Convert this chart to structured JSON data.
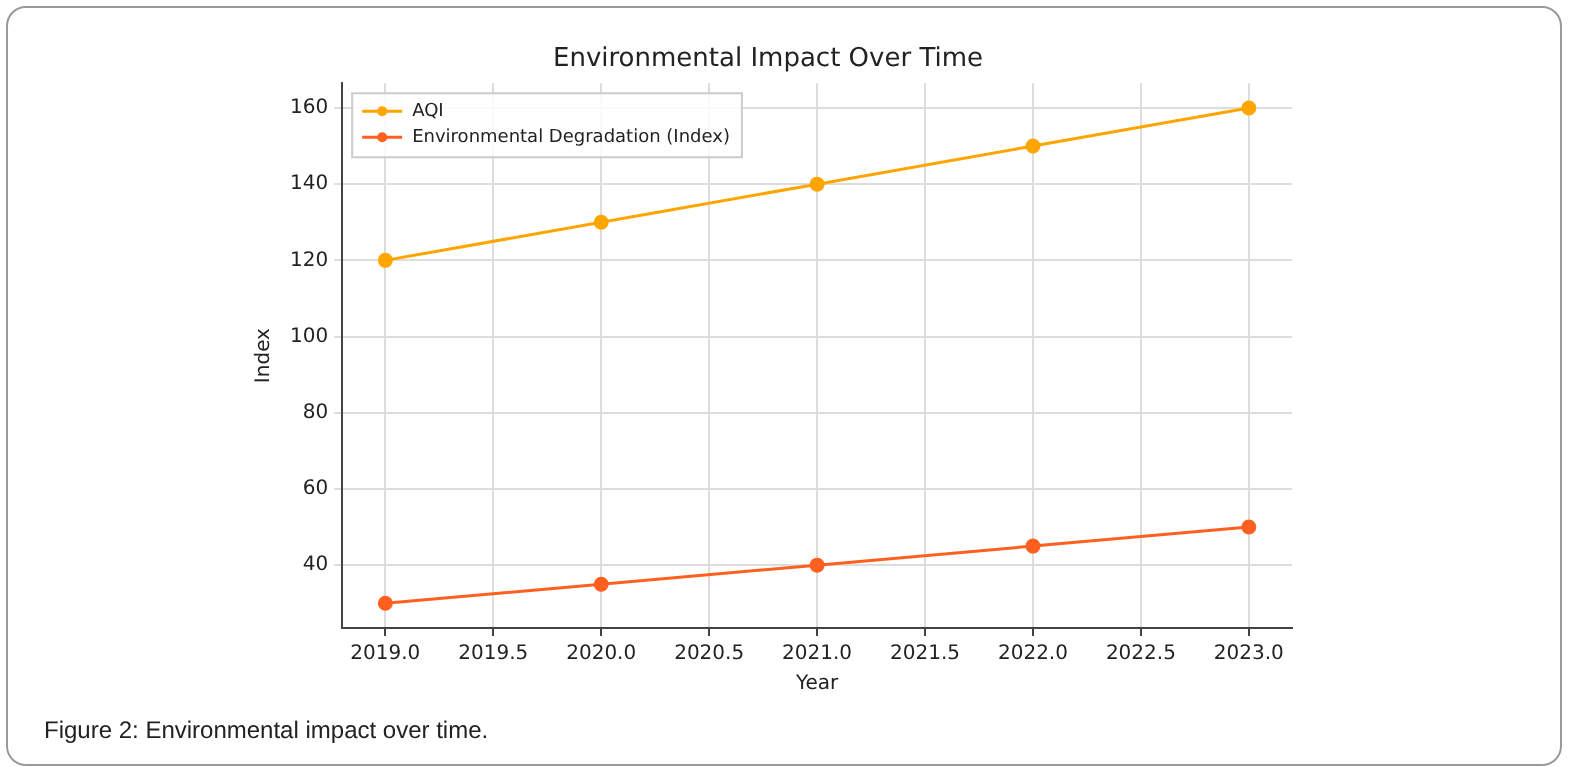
{
  "chart_data": {
    "type": "line",
    "title": "Environmental Impact Over Time",
    "xlabel": "Year",
    "ylabel": "Index",
    "x": [
      2019,
      2020,
      2021,
      2022,
      2023
    ],
    "series": [
      {
        "name": "AQI",
        "color": "#ffa500",
        "values": [
          120,
          130,
          140,
          150,
          160
        ]
      },
      {
        "name": "Environmental Degradation (Index)",
        "color": "#ff5f1f",
        "values": [
          30,
          35,
          40,
          45,
          50
        ]
      }
    ],
    "xlim": [
      2018.8,
      2023.2
    ],
    "xticks": [
      {
        "value": 2019,
        "label": "2019.0"
      },
      {
        "value": 2019.5,
        "label": "2019.5"
      },
      {
        "value": 2020,
        "label": "2020.0"
      },
      {
        "value": 2020.5,
        "label": "2020.5"
      },
      {
        "value": 2021,
        "label": "2021.0"
      },
      {
        "value": 2021.5,
        "label": "2021.5"
      },
      {
        "value": 2022,
        "label": "2022.0"
      },
      {
        "value": 2022.5,
        "label": "2022.5"
      },
      {
        "value": 2023,
        "label": "2023.0"
      }
    ],
    "ylim": [
      23.5,
      166.5
    ],
    "yticks": [
      40,
      60,
      80,
      100,
      120,
      140,
      160
    ],
    "grid": true,
    "legend": "top left",
    "marker": "circle",
    "line_style": "solid",
    "annotations": [
      "Figure 2: Environmental impact over time."
    ]
  }
}
